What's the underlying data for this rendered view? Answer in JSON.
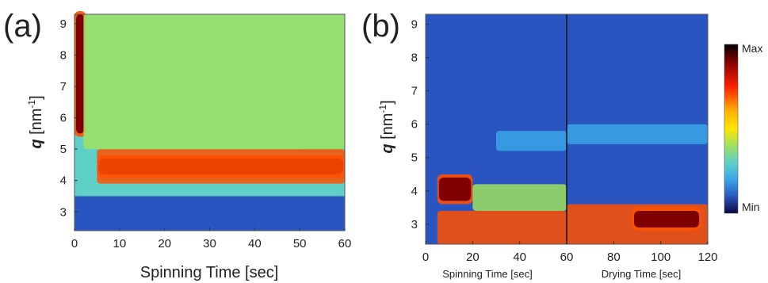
{
  "figure": {
    "colormap": [
      "#000000",
      "#7f0000",
      "#d40000",
      "#ff5000",
      "#ffb400",
      "#ffe600",
      "#9fe060",
      "#5fd0c8",
      "#3aa6e8",
      "#2a55c0",
      "#1e2f7a"
    ],
    "colorbar": {
      "max_label": "Max",
      "min_label": "Min"
    }
  },
  "chart_data": [
    {
      "type": "heatmap",
      "panel_label": "(a)",
      "xlabel": "Spinning Time [sec]",
      "ylabel_symbol": "q",
      "ylabel_unit": " [nm",
      "ylabel_exp": "-1",
      "ylabel_close": "]",
      "xlim": [
        0,
        60
      ],
      "ylim": [
        2.4,
        9.3
      ],
      "xticks": [
        0,
        10,
        20,
        30,
        40,
        50,
        60
      ],
      "yticks": [
        3,
        4,
        5,
        6,
        7,
        8,
        9
      ],
      "value_range": [
        "Min",
        "Max"
      ],
      "features": [
        {
          "x_range": [
            0,
            2.5
          ],
          "q_range": [
            5.5,
            9.3
          ],
          "level": "Max"
        },
        {
          "x_range": [
            5,
            60
          ],
          "q_range": [
            4.2,
            4.7
          ],
          "level": "Max"
        },
        {
          "x_range": [
            5,
            60
          ],
          "q_range": [
            3.9,
            5.0
          ],
          "level": "high"
        },
        {
          "x_range": [
            0,
            60
          ],
          "q_range": [
            2.4,
            3.5
          ],
          "level": "low"
        },
        {
          "x_range": [
            2,
            60
          ],
          "q_range": [
            5.0,
            9.3
          ],
          "level": "medium"
        }
      ]
    },
    {
      "type": "heatmap",
      "panel_label": "(b)",
      "xlabel_left": "Spinning Time [sec]",
      "xlabel_right": "Drying Time [sec]",
      "ylabel_symbol": "q",
      "ylabel_unit": " [nm",
      "ylabel_exp": "-1",
      "ylabel_close": "]",
      "xlim": [
        0,
        120
      ],
      "ylim": [
        2.4,
        9.3
      ],
      "xticks": [
        0,
        20,
        40,
        60,
        80,
        100,
        120
      ],
      "yticks": [
        3,
        4,
        5,
        6,
        7,
        8,
        9
      ],
      "divider_x": 60,
      "value_range": [
        "Min",
        "Max"
      ],
      "features": [
        {
          "x_range": [
            5,
            20
          ],
          "q_range": [
            3.7,
            4.4
          ],
          "level": "Max"
        },
        {
          "x_range": [
            20,
            60
          ],
          "q_range": [
            3.4,
            4.2
          ],
          "level": "medium"
        },
        {
          "x_range": [
            5,
            60
          ],
          "q_range": [
            2.4,
            3.4
          ],
          "level": "high"
        },
        {
          "x_range": [
            60,
            120
          ],
          "q_range": [
            2.4,
            3.6
          ],
          "level": "high"
        },
        {
          "x_range": [
            88,
            117
          ],
          "q_range": [
            2.9,
            3.4
          ],
          "level": "Max"
        },
        {
          "x_range": [
            60,
            120
          ],
          "q_range": [
            5.4,
            6.0
          ],
          "level": "medium-low"
        },
        {
          "x_range": [
            30,
            60
          ],
          "q_range": [
            5.2,
            5.8
          ],
          "level": "medium-low"
        }
      ]
    }
  ]
}
